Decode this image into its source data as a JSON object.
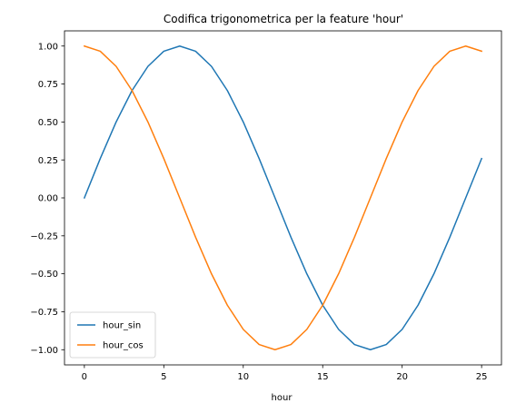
{
  "chart_data": {
    "type": "line",
    "title": "Codifica trigonometrica per la feature 'hour'",
    "xlabel": "hour",
    "ylabel": "",
    "xlim": [
      -1.25,
      26.25
    ],
    "ylim": [
      -1.1,
      1.1
    ],
    "xticks": [
      0,
      5,
      10,
      15,
      20,
      25
    ],
    "xtick_labels": [
      "0",
      "5",
      "10",
      "15",
      "20",
      "25"
    ],
    "yticks": [
      1.0,
      0.75,
      0.5,
      0.25,
      0.0,
      -0.25,
      -0.5,
      -0.75,
      -1.0
    ],
    "ytick_labels": [
      "1.00",
      "0.75",
      "0.50",
      "0.25",
      "0.00",
      "−0.25",
      "−0.50",
      "−0.75",
      "−1.00"
    ],
    "grid": false,
    "legend_position": "lower-left",
    "x": [
      0,
      1,
      2,
      3,
      4,
      5,
      6,
      7,
      8,
      9,
      10,
      11,
      12,
      13,
      14,
      15,
      16,
      17,
      18,
      19,
      20,
      21,
      22,
      23,
      24,
      25
    ],
    "series": [
      {
        "name": "hour_sin",
        "color": "#1f77b4",
        "values": [
          0.0,
          0.259,
          0.5,
          0.707,
          0.866,
          0.966,
          1.0,
          0.966,
          0.866,
          0.707,
          0.5,
          0.259,
          0.0,
          -0.259,
          -0.5,
          -0.707,
          -0.866,
          -0.966,
          -1.0,
          -0.966,
          -0.866,
          -0.707,
          -0.5,
          -0.259,
          0.0,
          0.259
        ]
      },
      {
        "name": "hour_cos",
        "color": "#ff7f0e",
        "values": [
          1.0,
          0.966,
          0.866,
          0.707,
          0.5,
          0.259,
          0.0,
          -0.259,
          -0.5,
          -0.707,
          -0.866,
          -0.966,
          -1.0,
          -0.966,
          -0.866,
          -0.707,
          -0.5,
          -0.259,
          0.0,
          0.259,
          0.5,
          0.707,
          0.866,
          0.966,
          1.0,
          0.966
        ]
      }
    ]
  }
}
